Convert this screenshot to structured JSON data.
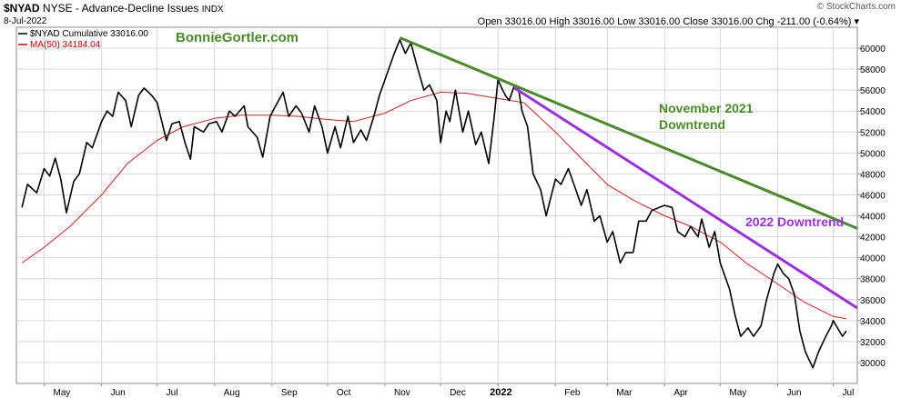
{
  "header": {
    "symbol": "$NYAD",
    "description": "NYSE - Advance-Decline Issues",
    "exchange": "INDX",
    "date": "8-Jul-2022",
    "ohlc": "Open 33016.00  High 33016.00  Low 33016.00  Close 33016.00  Chg -211.00 (-0.64%) ▾",
    "watermark": "© StockCharts.com"
  },
  "legend": [
    {
      "label": "$NYAD Cumulative 33016.00",
      "color": "#000000"
    },
    {
      "label": "MA(50) 34184.04",
      "color": "#cc0000"
    }
  ],
  "annotations": {
    "site": "BonnieGortler.com",
    "nov_trend": [
      "November 2021",
      "Downtrend"
    ],
    "trend_2022": "2022 Downtrend"
  },
  "colors": {
    "price": "#000000",
    "ma": "#d62020",
    "nov_trend": "#4a8a2a",
    "trend_2022": "#9b30e0",
    "site": "#4a8a2a"
  },
  "chart_data": {
    "type": "line",
    "title": "$NYAD NYSE - Advance-Decline Issues INDX",
    "ylim": [
      28000,
      62000
    ],
    "yticks": [
      30000,
      32000,
      34000,
      36000,
      38000,
      40000,
      42000,
      44000,
      46000,
      48000,
      50000,
      52000,
      54000,
      56000,
      58000,
      60000
    ],
    "ytick_labels": [
      "30000",
      "32000",
      "34000",
      "36000",
      "38000",
      "40000",
      "42000",
      "44000",
      "46000",
      "48000",
      "50000",
      "52000",
      "54000",
      "56000",
      "58000",
      "60000"
    ],
    "x_range": [
      "2021-04-16",
      "2022-07-14"
    ],
    "xticks": [
      {
        "label": "May",
        "date": "2021-05-01"
      },
      {
        "label": "Jun",
        "date": "2021-06-01"
      },
      {
        "label": "Jul",
        "date": "2021-07-01"
      },
      {
        "label": "Aug",
        "date": "2021-08-01"
      },
      {
        "label": "Sep",
        "date": "2021-09-01"
      },
      {
        "label": "Oct",
        "date": "2021-10-01"
      },
      {
        "label": "Nov",
        "date": "2021-11-01"
      },
      {
        "label": "Dec",
        "date": "2021-12-01"
      },
      {
        "label": "2022",
        "date": "2022-01-01",
        "bold": true
      },
      {
        "label": "Feb",
        "date": "2022-02-01"
      },
      {
        "label": "Mar",
        "date": "2022-03-01"
      },
      {
        "label": "Apr",
        "date": "2022-04-01"
      },
      {
        "label": "May",
        "date": "2022-05-01"
      },
      {
        "label": "Jun",
        "date": "2022-06-01"
      },
      {
        "label": "Jul",
        "date": "2022-07-01"
      }
    ],
    "series": [
      {
        "name": "$NYAD Cumulative",
        "points": [
          [
            "2021-04-19",
            44800
          ],
          [
            "2021-04-22",
            47000
          ],
          [
            "2021-04-27",
            46200
          ],
          [
            "2021-05-01",
            48500
          ],
          [
            "2021-05-04",
            47800
          ],
          [
            "2021-05-07",
            49500
          ],
          [
            "2021-05-10",
            47500
          ],
          [
            "2021-05-13",
            44300
          ],
          [
            "2021-05-17",
            47300
          ],
          [
            "2021-05-20",
            48000
          ],
          [
            "2021-05-24",
            51000
          ],
          [
            "2021-05-27",
            50500
          ],
          [
            "2021-06-01",
            53000
          ],
          [
            "2021-06-04",
            54000
          ],
          [
            "2021-06-07",
            53500
          ],
          [
            "2021-06-10",
            55800
          ],
          [
            "2021-06-14",
            55000
          ],
          [
            "2021-06-17",
            52500
          ],
          [
            "2021-06-21",
            55500
          ],
          [
            "2021-06-24",
            56200
          ],
          [
            "2021-06-28",
            55500
          ],
          [
            "2021-07-01",
            54800
          ],
          [
            "2021-07-06",
            51200
          ],
          [
            "2021-07-09",
            52800
          ],
          [
            "2021-07-13",
            53000
          ],
          [
            "2021-07-16",
            51000
          ],
          [
            "2021-07-19",
            49400
          ],
          [
            "2021-07-21",
            52500
          ],
          [
            "2021-07-26",
            52000
          ],
          [
            "2021-07-29",
            52800
          ],
          [
            "2021-08-02",
            53000
          ],
          [
            "2021-08-05",
            52000
          ],
          [
            "2021-08-09",
            54000
          ],
          [
            "2021-08-12",
            53500
          ],
          [
            "2021-08-17",
            54500
          ],
          [
            "2021-08-19",
            52500
          ],
          [
            "2021-08-24",
            51500
          ],
          [
            "2021-08-27",
            49600
          ],
          [
            "2021-08-31",
            53500
          ],
          [
            "2021-09-03",
            54500
          ],
          [
            "2021-09-07",
            55800
          ],
          [
            "2021-09-10",
            53500
          ],
          [
            "2021-09-14",
            54500
          ],
          [
            "2021-09-17",
            53800
          ],
          [
            "2021-09-21",
            52000
          ],
          [
            "2021-09-24",
            54500
          ],
          [
            "2021-09-28",
            52500
          ],
          [
            "2021-10-01",
            50000
          ],
          [
            "2021-10-05",
            52500
          ],
          [
            "2021-10-08",
            50500
          ],
          [
            "2021-10-12",
            53500
          ],
          [
            "2021-10-15",
            51000
          ],
          [
            "2021-10-19",
            52200
          ],
          [
            "2021-10-22",
            51200
          ],
          [
            "2021-10-26",
            53500
          ],
          [
            "2021-10-29",
            55500
          ],
          [
            "2021-11-01",
            57000
          ],
          [
            "2021-11-04",
            58500
          ],
          [
            "2021-11-06",
            59500
          ],
          [
            "2021-11-09",
            60800
          ],
          [
            "2021-11-12",
            59500
          ],
          [
            "2021-11-15",
            60500
          ],
          [
            "2021-11-18",
            58500
          ],
          [
            "2021-11-22",
            56000
          ],
          [
            "2021-11-25",
            56500
          ],
          [
            "2021-11-29",
            55000
          ],
          [
            "2021-12-01",
            51000
          ],
          [
            "2021-12-04",
            54000
          ],
          [
            "2021-12-06",
            53000
          ],
          [
            "2021-12-09",
            56000
          ],
          [
            "2021-12-13",
            52000
          ],
          [
            "2021-12-16",
            54000
          ],
          [
            "2021-12-20",
            50800
          ],
          [
            "2021-12-23",
            52000
          ],
          [
            "2021-12-27",
            49000
          ],
          [
            "2021-12-30",
            53500
          ],
          [
            "2022-01-01",
            57000
          ],
          [
            "2022-01-03",
            56200
          ],
          [
            "2022-01-05",
            55500
          ],
          [
            "2022-01-07",
            55000
          ],
          [
            "2022-01-10",
            56500
          ],
          [
            "2022-01-12",
            56200
          ],
          [
            "2022-01-14",
            54000
          ],
          [
            "2022-01-17",
            52500
          ],
          [
            "2022-01-20",
            48000
          ],
          [
            "2022-01-24",
            46500
          ],
          [
            "2022-01-27",
            44000
          ],
          [
            "2022-02-01",
            47500
          ],
          [
            "2022-02-04",
            47000
          ],
          [
            "2022-02-08",
            48500
          ],
          [
            "2022-02-11",
            47000
          ],
          [
            "2022-02-15",
            45000
          ],
          [
            "2022-02-18",
            46500
          ],
          [
            "2022-02-22",
            43500
          ],
          [
            "2022-02-25",
            44000
          ],
          [
            "2022-03-01",
            41500
          ],
          [
            "2022-03-04",
            42500
          ],
          [
            "2022-03-08",
            39500
          ],
          [
            "2022-03-11",
            40500
          ],
          [
            "2022-03-15",
            40500
          ],
          [
            "2022-03-18",
            43500
          ],
          [
            "2022-03-22",
            43500
          ],
          [
            "2022-03-25",
            44500
          ],
          [
            "2022-03-29",
            44800
          ],
          [
            "2022-04-01",
            45000
          ],
          [
            "2022-04-05",
            44800
          ],
          [
            "2022-04-08",
            42500
          ],
          [
            "2022-04-12",
            42000
          ],
          [
            "2022-04-15",
            43000
          ],
          [
            "2022-04-19",
            42000
          ],
          [
            "2022-04-21",
            43700
          ],
          [
            "2022-04-25",
            41000
          ],
          [
            "2022-04-28",
            42500
          ],
          [
            "2022-05-01",
            39500
          ],
          [
            "2022-05-04",
            38000
          ],
          [
            "2022-05-06",
            37000
          ],
          [
            "2022-05-09",
            34500
          ],
          [
            "2022-05-12",
            32500
          ],
          [
            "2022-05-16",
            33300
          ],
          [
            "2022-05-19",
            32500
          ],
          [
            "2022-05-23",
            33500
          ],
          [
            "2022-05-26",
            36000
          ],
          [
            "2022-05-30",
            38500
          ],
          [
            "2022-06-01",
            39400
          ],
          [
            "2022-06-04",
            38500
          ],
          [
            "2022-06-07",
            38000
          ],
          [
            "2022-06-10",
            36500
          ],
          [
            "2022-06-13",
            33000
          ],
          [
            "2022-06-16",
            31000
          ],
          [
            "2022-06-20",
            29500
          ],
          [
            "2022-06-23",
            31000
          ],
          [
            "2022-06-27",
            32500
          ],
          [
            "2022-06-30",
            33500
          ],
          [
            "2022-07-01",
            34000
          ],
          [
            "2022-07-06",
            32500
          ],
          [
            "2022-07-08",
            33016
          ]
        ]
      },
      {
        "name": "MA(50)",
        "points": [
          [
            "2021-04-19",
            39500
          ],
          [
            "2021-05-01",
            41000
          ],
          [
            "2021-05-15",
            43000
          ],
          [
            "2021-06-01",
            46000
          ],
          [
            "2021-06-15",
            49000
          ],
          [
            "2021-07-01",
            51200
          ],
          [
            "2021-07-15",
            52500
          ],
          [
            "2021-08-01",
            53300
          ],
          [
            "2021-08-15",
            53600
          ],
          [
            "2021-09-01",
            53600
          ],
          [
            "2021-09-15",
            53500
          ],
          [
            "2021-10-01",
            53200
          ],
          [
            "2021-10-15",
            53000
          ],
          [
            "2021-11-01",
            53800
          ],
          [
            "2021-11-15",
            55000
          ],
          [
            "2021-12-01",
            55800
          ],
          [
            "2021-12-15",
            55700
          ],
          [
            "2022-01-01",
            55200
          ],
          [
            "2022-01-15",
            54800
          ],
          [
            "2022-02-01",
            52000
          ],
          [
            "2022-02-15",
            49500
          ],
          [
            "2022-03-01",
            47000
          ],
          [
            "2022-03-15",
            45500
          ],
          [
            "2022-04-01",
            44000
          ],
          [
            "2022-04-15",
            43000
          ],
          [
            "2022-05-01",
            41500
          ],
          [
            "2022-05-15",
            39500
          ],
          [
            "2022-06-01",
            37500
          ],
          [
            "2022-06-15",
            35800
          ],
          [
            "2022-07-01",
            34400
          ],
          [
            "2022-07-08",
            34184
          ]
        ]
      },
      {
        "name": "November 2021 Downtrend",
        "points": [
          [
            "2021-11-09",
            61000
          ],
          [
            "2022-07-14",
            42800
          ]
        ]
      },
      {
        "name": "2022 Downtrend",
        "points": [
          [
            "2022-01-10",
            56200
          ],
          [
            "2022-07-14",
            35200
          ]
        ]
      }
    ]
  }
}
